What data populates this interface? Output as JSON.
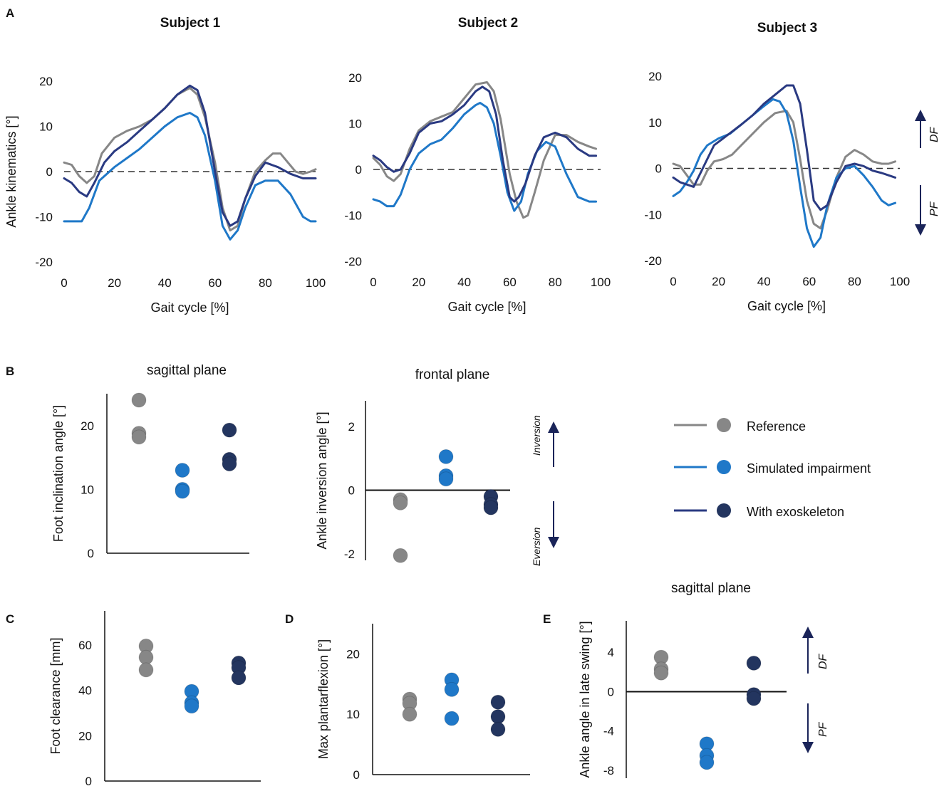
{
  "colors": {
    "reference": "#878787",
    "impairment": "#1f78c8",
    "exoskeleton": "#2a3a82",
    "exo_dot": "#23355f",
    "arrow": "#1a2459"
  },
  "panel_labels": {
    "a": "A",
    "b": "B",
    "c": "C",
    "d": "D",
    "e": "E"
  },
  "legend": {
    "reference": "Reference",
    "impairment": "Simulated impairment",
    "exoskeleton": "With exoskeleton"
  },
  "annotations": {
    "df": "DF",
    "pf": "PF",
    "inversion": "Inversion",
    "eversion": "Eversion"
  },
  "chart_data": [
    {
      "type": "line",
      "panel": "A",
      "title": "Subject 1",
      "xlabel": "Gait cycle [%]",
      "ylabel": "Ankle kinematics [°]",
      "xlim": [
        0,
        100
      ],
      "ylim": [
        -20,
        20
      ],
      "xticks": [
        0,
        20,
        40,
        60,
        80,
        100
      ],
      "yticks": [
        20,
        10,
        0,
        -10,
        -20
      ],
      "yticklabels": [
        "20",
        "10",
        "0",
        "-10",
        "-20"
      ],
      "series": [
        {
          "name": "Reference",
          "x": [
            0,
            3,
            6,
            9,
            12,
            15,
            20,
            25,
            30,
            35,
            40,
            45,
            50,
            53,
            56,
            60,
            63,
            66,
            69,
            72,
            76,
            80,
            83,
            86,
            89,
            92,
            95,
            98,
            100
          ],
          "y": [
            2,
            1.5,
            -1,
            -2.5,
            -1,
            4,
            7.5,
            9,
            10,
            11.5,
            14,
            17,
            18.5,
            17,
            12,
            2,
            -8,
            -13,
            -12,
            -6,
            0,
            2.5,
            4,
            4,
            2,
            0,
            -0.5,
            0,
            0.5
          ]
        },
        {
          "name": "Simulated impairment",
          "x": [
            0,
            4,
            7,
            10,
            14,
            20,
            25,
            30,
            35,
            40,
            45,
            50,
            53,
            56,
            60,
            63,
            66,
            69,
            72,
            76,
            80,
            85,
            90,
            95,
            98,
            100
          ],
          "y": [
            -11,
            -11,
            -11,
            -8,
            -2,
            1,
            3,
            5,
            7.5,
            10,
            12,
            13,
            12,
            8,
            -2,
            -12,
            -15,
            -13,
            -8,
            -3,
            -2,
            -2,
            -5,
            -10,
            -11,
            -11
          ]
        },
        {
          "name": "With exoskeleton",
          "x": [
            0,
            3,
            6,
            9,
            12,
            16,
            20,
            25,
            30,
            35,
            40,
            45,
            50,
            53,
            56,
            60,
            63,
            66,
            69,
            72,
            76,
            80,
            85,
            90,
            95,
            100
          ],
          "y": [
            -1.5,
            -2.5,
            -4.5,
            -5.5,
            -2.5,
            2,
            4.5,
            6.5,
            9,
            11.5,
            14,
            17,
            19,
            18,
            13,
            0,
            -9,
            -12,
            -11,
            -6,
            -1,
            2,
            1,
            -0.5,
            -1.5,
            -1.5
          ]
        }
      ]
    },
    {
      "type": "line",
      "panel": "A",
      "title": "Subject 2",
      "xlabel": "Gait cycle [%]",
      "ylabel": "",
      "xlim": [
        0,
        100
      ],
      "ylim": [
        -20,
        20
      ],
      "xticks": [
        0,
        20,
        40,
        60,
        80,
        100
      ],
      "yticks": [
        20,
        10,
        0,
        -10,
        -20
      ],
      "yticklabels": [
        "20",
        "10",
        "0",
        "-10",
        "-20"
      ],
      "series": [
        {
          "name": "Reference",
          "x": [
            0,
            3,
            6,
            9,
            12,
            16,
            20,
            25,
            30,
            35,
            40,
            45,
            50,
            53,
            56,
            60,
            63,
            66,
            68,
            71,
            75,
            80,
            85,
            90,
            95,
            98
          ],
          "y": [
            2.5,
            1,
            -1.5,
            -2.5,
            -1,
            4.5,
            8.5,
            10.5,
            11.5,
            12.5,
            15.5,
            18.5,
            19,
            17,
            11,
            -1,
            -7,
            -10.5,
            -10,
            -5,
            2,
            7.5,
            7.5,
            6,
            5,
            4.5
          ]
        },
        {
          "name": "Simulated impairment",
          "x": [
            0,
            3,
            6,
            9,
            12,
            16,
            20,
            25,
            30,
            35,
            40,
            45,
            47,
            50,
            53,
            56,
            59,
            62,
            65,
            68,
            72,
            76,
            80,
            85,
            90,
            95,
            98
          ],
          "y": [
            -6.5,
            -7,
            -8,
            -8,
            -5.5,
            0,
            3.5,
            5.5,
            6.5,
            9,
            12,
            14,
            14.5,
            13.5,
            10,
            3,
            -5,
            -9,
            -7,
            -1,
            4,
            6,
            5,
            -1,
            -6,
            -7,
            -7
          ]
        },
        {
          "name": "With exoskeleton",
          "x": [
            0,
            3,
            6,
            9,
            12,
            16,
            20,
            25,
            30,
            35,
            40,
            45,
            48,
            51,
            54,
            57,
            60,
            62,
            64,
            67,
            71,
            75,
            80,
            85,
            90,
            95,
            98
          ],
          "y": [
            3,
            2,
            0.5,
            -0.5,
            0,
            3.5,
            8,
            10,
            10.5,
            12,
            14,
            17,
            18,
            17,
            12,
            2,
            -6,
            -7,
            -6,
            -3,
            3,
            7,
            8,
            7,
            4.5,
            3,
            3
          ]
        }
      ]
    },
    {
      "type": "line",
      "panel": "A",
      "title": "Subject 3",
      "xlabel": "Gait cycle [%]",
      "ylabel": "",
      "xlim": [
        0,
        100
      ],
      "ylim": [
        -20,
        20
      ],
      "xticks": [
        0,
        20,
        40,
        60,
        80,
        100
      ],
      "yticks": [
        20,
        10,
        0,
        -10,
        -20
      ],
      "yticklabels": [
        "20",
        "10",
        "0",
        "-10",
        "-20"
      ],
      "series": [
        {
          "name": "Reference",
          "x": [
            0,
            3,
            6,
            9,
            12,
            15,
            18,
            22,
            26,
            30,
            35,
            40,
            45,
            50,
            53,
            56,
            59,
            62,
            65,
            68,
            72,
            76,
            80,
            84,
            88,
            92,
            95,
            98
          ],
          "y": [
            1,
            0.5,
            -1.5,
            -3.5,
            -3.5,
            -0.5,
            1.5,
            2,
            3,
            5,
            7.5,
            10,
            12,
            12.5,
            10,
            2,
            -7,
            -12,
            -13,
            -9,
            -2,
            2.5,
            4,
            3,
            1.5,
            1,
            1,
            1.5
          ]
        },
        {
          "name": "Simulated impairment",
          "x": [
            0,
            3,
            6,
            9,
            12,
            15,
            20,
            25,
            30,
            35,
            40,
            44,
            47,
            50,
            53,
            56,
            59,
            62,
            65,
            68,
            72,
            76,
            80,
            84,
            88,
            92,
            95,
            98
          ],
          "y": [
            -6,
            -5,
            -3,
            -0.5,
            3,
            5,
            6.5,
            7.5,
            9.5,
            11.5,
            13.5,
            15,
            14.5,
            12,
            6,
            -4,
            -13,
            -17,
            -15,
            -8,
            -2,
            0,
            0.5,
            -1.5,
            -4,
            -7,
            -8,
            -7.5
          ]
        },
        {
          "name": "With exoskeleton",
          "x": [
            0,
            3,
            6,
            9,
            12,
            15,
            18,
            22,
            26,
            30,
            35,
            40,
            45,
            50,
            53,
            56,
            59,
            62,
            65,
            68,
            72,
            76,
            80,
            84,
            88,
            92,
            95,
            98
          ],
          "y": [
            -2,
            -3,
            -3.5,
            -4,
            -1,
            2,
            5,
            6.5,
            8,
            9.5,
            11.5,
            14,
            16,
            18,
            18,
            14,
            4,
            -7,
            -9,
            -8,
            -3,
            0.5,
            1,
            0.5,
            -0.5,
            -1,
            -1.5,
            -2
          ]
        }
      ]
    },
    {
      "type": "scatter",
      "panel": "B",
      "title": "sagittal plane",
      "ylabel": "Foot inclination angle [°]",
      "ylim": [
        0,
        25
      ],
      "yticks": [
        0,
        10,
        20
      ],
      "yticklabels": [
        "0",
        "10",
        "20"
      ],
      "series": [
        {
          "name": "Reference",
          "values": [
            24,
            18.8,
            18.2
          ]
        },
        {
          "name": "Simulated impairment",
          "values": [
            13,
            10,
            9.7
          ]
        },
        {
          "name": "With exoskeleton",
          "values": [
            19.3,
            14.7,
            14
          ]
        }
      ]
    },
    {
      "type": "scatter",
      "panel": "B",
      "title": "frontal plane",
      "ylabel": "Ankle inversion angle [°]",
      "ylim": [
        -2.2,
        2.8
      ],
      "zero_line": true,
      "yticks": [
        2,
        0,
        -2
      ],
      "yticklabels": [
        "2",
        "0",
        "-2"
      ],
      "series": [
        {
          "name": "Reference",
          "values": [
            -0.3,
            -0.4,
            -2.05
          ]
        },
        {
          "name": "Simulated impairment",
          "values": [
            1.05,
            0.45,
            0.35
          ]
        },
        {
          "name": "With exoskeleton",
          "values": [
            -0.2,
            -0.45,
            -0.55
          ]
        }
      ]
    },
    {
      "type": "scatter",
      "panel": "C",
      "title": "",
      "ylabel": "Foot clearance [mm]",
      "ylim": [
        0,
        75
      ],
      "yticks": [
        0,
        20,
        40,
        60
      ],
      "yticklabels": [
        "0",
        "20",
        "40",
        "60"
      ],
      "series": [
        {
          "name": "Reference",
          "values": [
            59.5,
            54.5,
            49
          ]
        },
        {
          "name": "Simulated impairment",
          "values": [
            39.5,
            34.5,
            33
          ]
        },
        {
          "name": "With exoskeleton",
          "values": [
            52,
            50,
            45.5
          ]
        }
      ]
    },
    {
      "type": "scatter",
      "panel": "D",
      "title": "",
      "ylabel": "Max plantarflexion [°]",
      "ylim": [
        0,
        25
      ],
      "yticks": [
        0,
        10,
        20
      ],
      "yticklabels": [
        "0",
        "10",
        "20"
      ],
      "series": [
        {
          "name": "Reference",
          "values": [
            12.5,
            11.8,
            10
          ]
        },
        {
          "name": "Simulated impairment",
          "values": [
            15.7,
            14.1,
            9.3
          ]
        },
        {
          "name": "With exoskeleton",
          "values": [
            12,
            9.6,
            7.5
          ]
        }
      ]
    },
    {
      "type": "scatter",
      "panel": "E",
      "title": "sagittal plane",
      "ylabel": "Ankle angle in late swing [°]",
      "ylim": [
        -8.8,
        7.2
      ],
      "zero_line": true,
      "yticks": [
        4,
        0,
        -4,
        -8
      ],
      "yticklabels": [
        "4",
        "0",
        "-4",
        "-8"
      ],
      "series": [
        {
          "name": "Reference",
          "values": [
            3.5,
            2.3,
            1.9
          ]
        },
        {
          "name": "Simulated impairment",
          "values": [
            -5.3,
            -6.5,
            -7.2
          ]
        },
        {
          "name": "With exoskeleton",
          "values": [
            2.9,
            -0.3,
            -0.7
          ]
        }
      ]
    }
  ]
}
